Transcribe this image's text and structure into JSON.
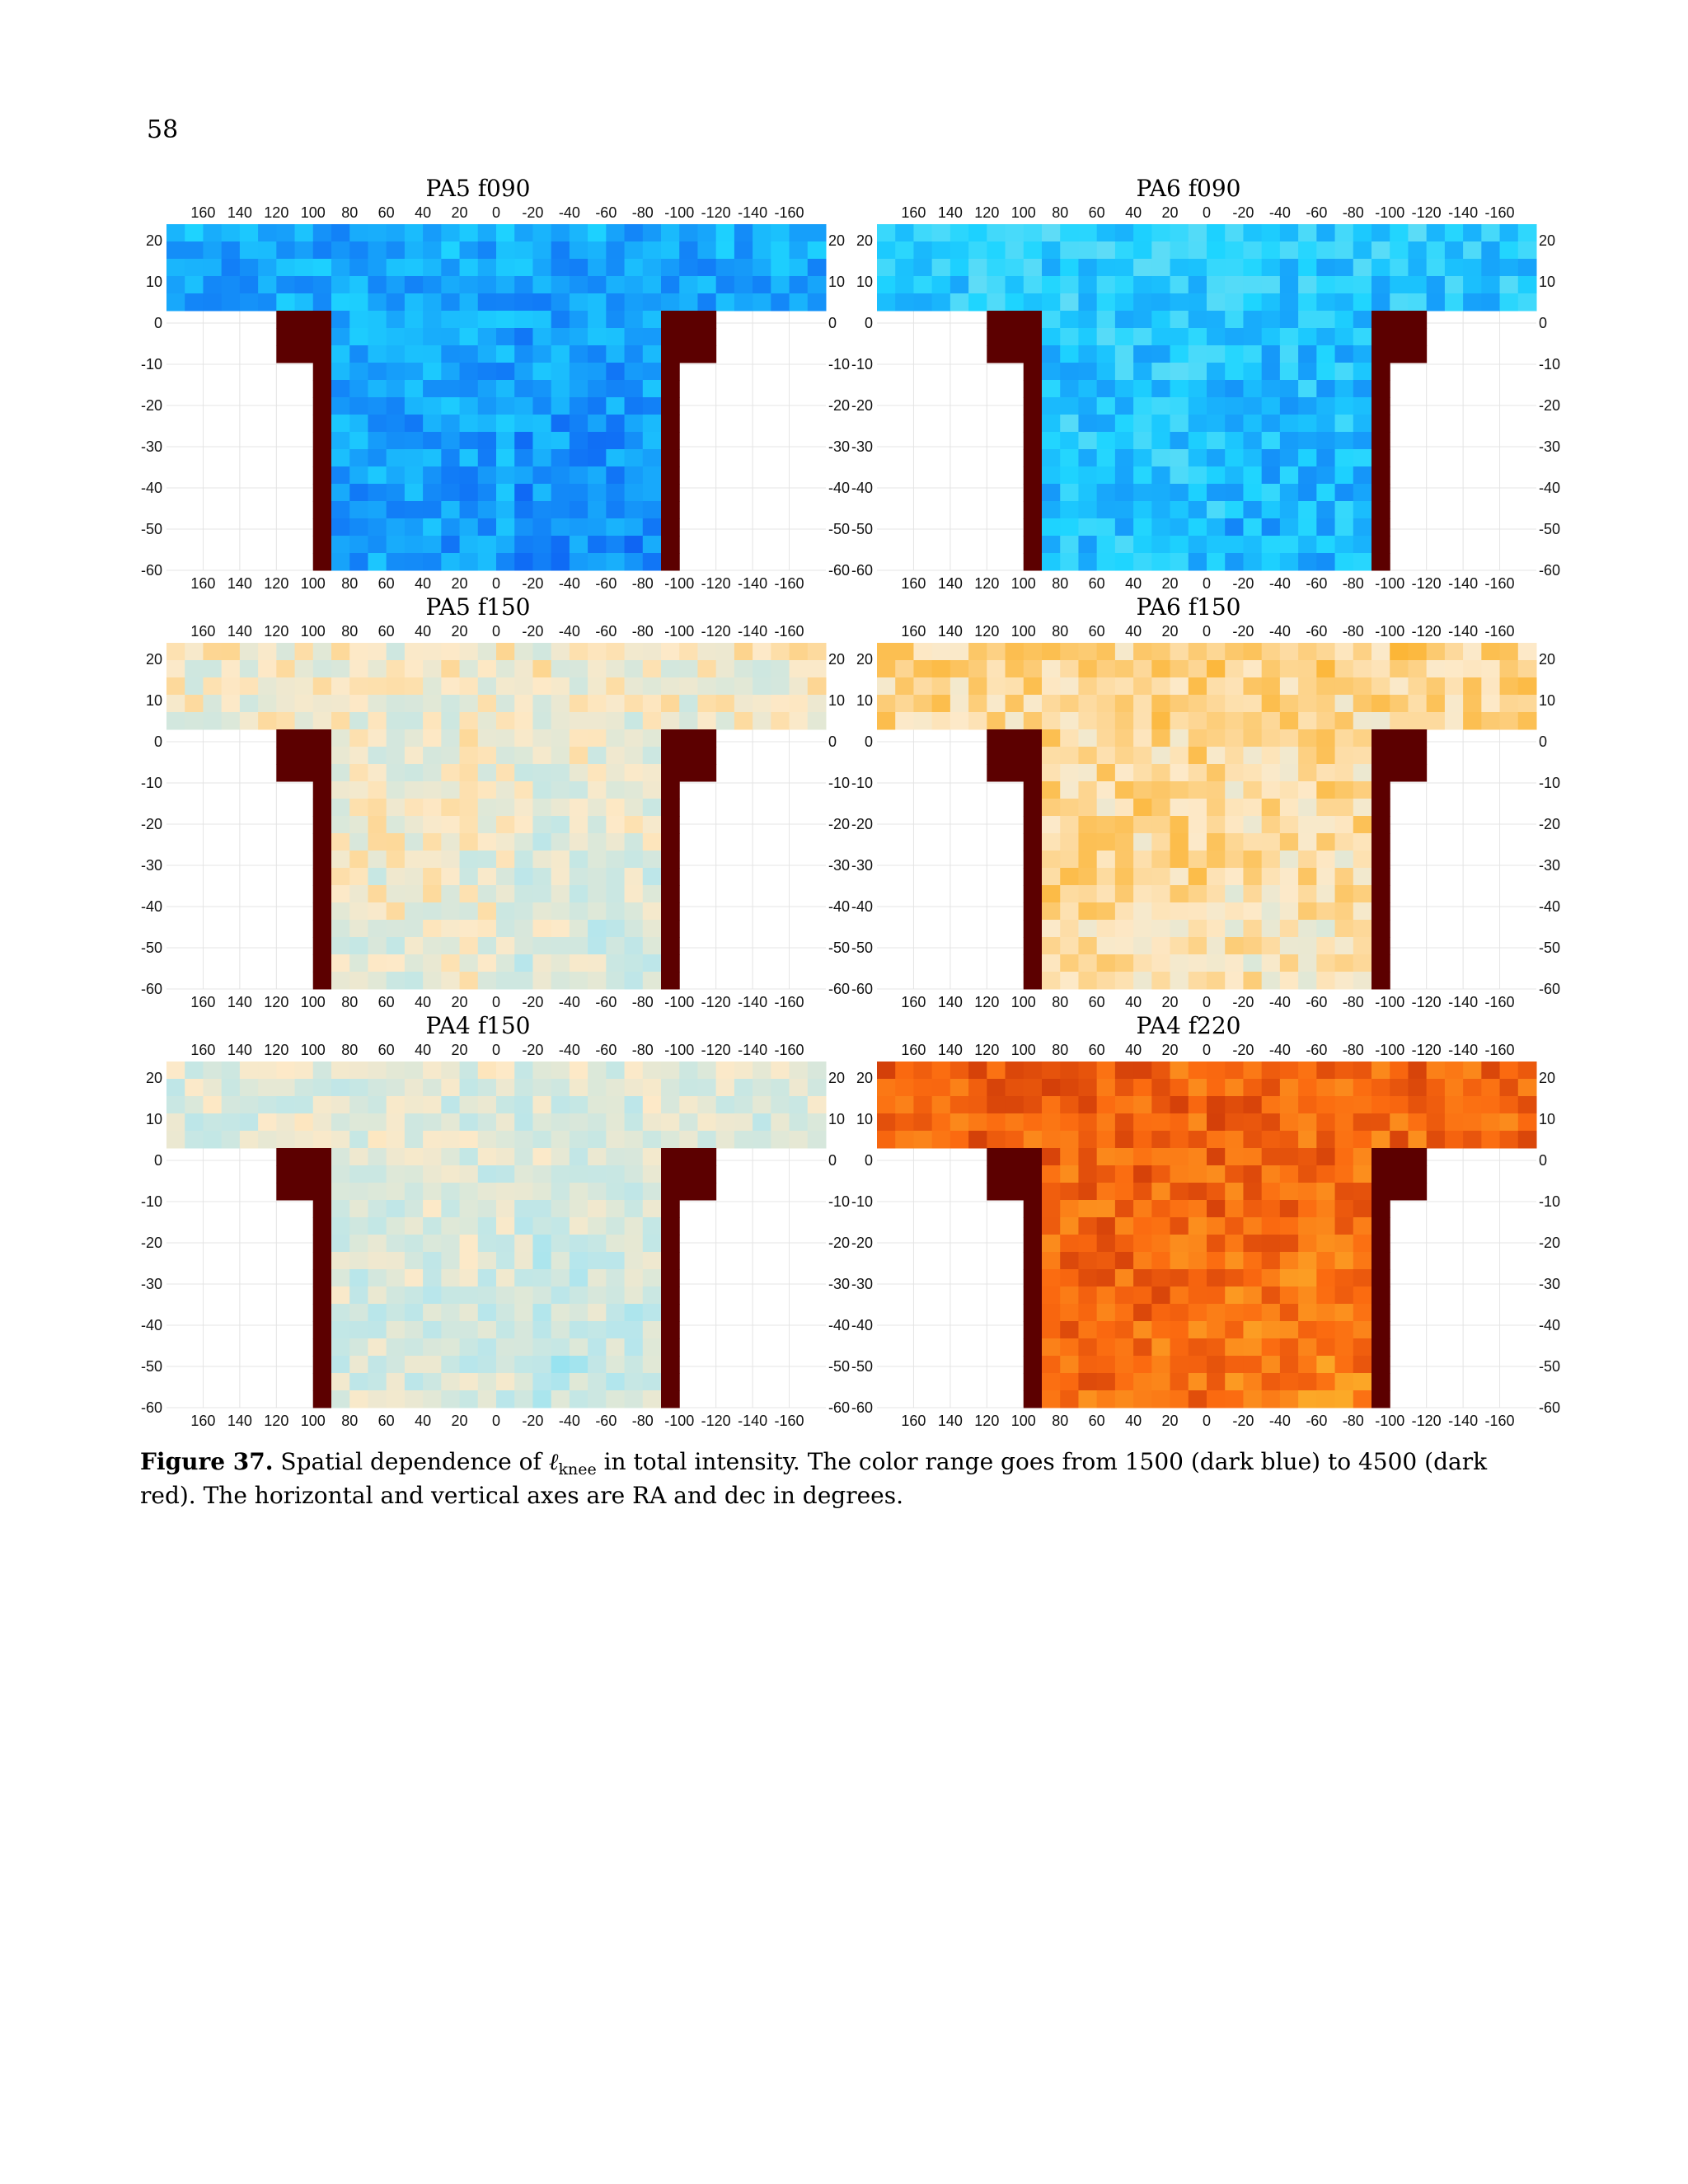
{
  "page_number": "58",
  "caption": {
    "label": "Figure 37.",
    "text_before_symbol": "Spatial dependence of ",
    "symbol": "ℓ",
    "symbol_subscript": "knee",
    "text_after_symbol": " in total intensity. The color range goes from 1500 (dark blue) to 4500 (dark red). The horizontal and vertical axes are RA and dec in degrees."
  },
  "colors": {
    "dark_red": "#5c0000",
    "scale": [
      "#0a22dd",
      "#0f6af5",
      "#1ed5ff",
      "#b6e6ec",
      "#fde9c8",
      "#fcb12a",
      "#fb6a10",
      "#c22d06",
      "#5c0000"
    ]
  },
  "chart_data": [
    {
      "type": "heatmap",
      "title": "PA5 f090",
      "xlabel": "",
      "ylabel": "",
      "x_ticks": [
        "160",
        "140",
        "120",
        "100",
        "80",
        "60",
        "40",
        "20",
        "0",
        "-20",
        "-40",
        "-60",
        "-80",
        "-100",
        "-120",
        "-140",
        "-160"
      ],
      "y_ticks": [
        "20",
        "10",
        "0",
        "-10",
        "-20",
        "-30",
        "-40",
        "-50",
        "-60"
      ],
      "value_range": [
        1500,
        4500
      ],
      "typical_value": 2100,
      "spread": 150
    },
    {
      "type": "heatmap",
      "title": "PA6 f090",
      "xlabel": "",
      "ylabel": "",
      "x_ticks": [
        "160",
        "140",
        "120",
        "100",
        "80",
        "60",
        "40",
        "20",
        "0",
        "-20",
        "-40",
        "-60",
        "-80",
        "-100",
        "-120",
        "-140",
        "-160"
      ],
      "y_ticks": [
        "20",
        "10",
        "0",
        "-10",
        "-20",
        "-30",
        "-40",
        "-50",
        "-60"
      ],
      "value_range": [
        1500,
        4500
      ],
      "typical_value": 2250,
      "spread": 170
    },
    {
      "type": "heatmap",
      "title": "PA5 f150",
      "xlabel": "",
      "ylabel": "",
      "x_ticks": [
        "160",
        "140",
        "120",
        "100",
        "80",
        "60",
        "40",
        "20",
        "0",
        "-20",
        "-40",
        "-60",
        "-80",
        "-100",
        "-120",
        "-140",
        "-160"
      ],
      "y_ticks": [
        "20",
        "10",
        "0",
        "-10",
        "-20",
        "-30",
        "-40",
        "-50",
        "-60"
      ],
      "value_range": [
        1500,
        4500
      ],
      "typical_value": 2950,
      "spread": 200
    },
    {
      "type": "heatmap",
      "title": "PA6 f150",
      "xlabel": "",
      "ylabel": "",
      "x_ticks": [
        "160",
        "140",
        "120",
        "100",
        "80",
        "60",
        "40",
        "20",
        "0",
        "-20",
        "-40",
        "-60",
        "-80",
        "-100",
        "-120",
        "-140",
        "-160"
      ],
      "y_ticks": [
        "20",
        "10",
        "0",
        "-10",
        "-20",
        "-30",
        "-40",
        "-50",
        "-60"
      ],
      "value_range": [
        1500,
        4500
      ],
      "typical_value": 3150,
      "spread": 200
    },
    {
      "type": "heatmap",
      "title": "PA4 f150",
      "xlabel": "",
      "ylabel": "",
      "x_ticks": [
        "160",
        "140",
        "120",
        "100",
        "80",
        "60",
        "40",
        "20",
        "0",
        "-20",
        "-40",
        "-60",
        "-80",
        "-100",
        "-120",
        "-140",
        "-160"
      ],
      "y_ticks": [
        "20",
        "10",
        "0",
        "-10",
        "-20",
        "-30",
        "-40",
        "-50",
        "-60"
      ],
      "value_range": [
        1500,
        4500
      ],
      "typical_value": 2850,
      "spread": 180
    },
    {
      "type": "heatmap",
      "title": "PA4 f220",
      "xlabel": "",
      "ylabel": "",
      "x_ticks": [
        "160",
        "140",
        "120",
        "100",
        "80",
        "60",
        "40",
        "20",
        "0",
        "-20",
        "-40",
        "-60",
        "-80",
        "-100",
        "-120",
        "-140",
        "-160"
      ],
      "y_ticks": [
        "20",
        "10",
        "0",
        "-10",
        "-20",
        "-30",
        "-40",
        "-50",
        "-60"
      ],
      "value_range": [
        1500,
        4500
      ],
      "typical_value": 3800,
      "spread": 220
    }
  ]
}
